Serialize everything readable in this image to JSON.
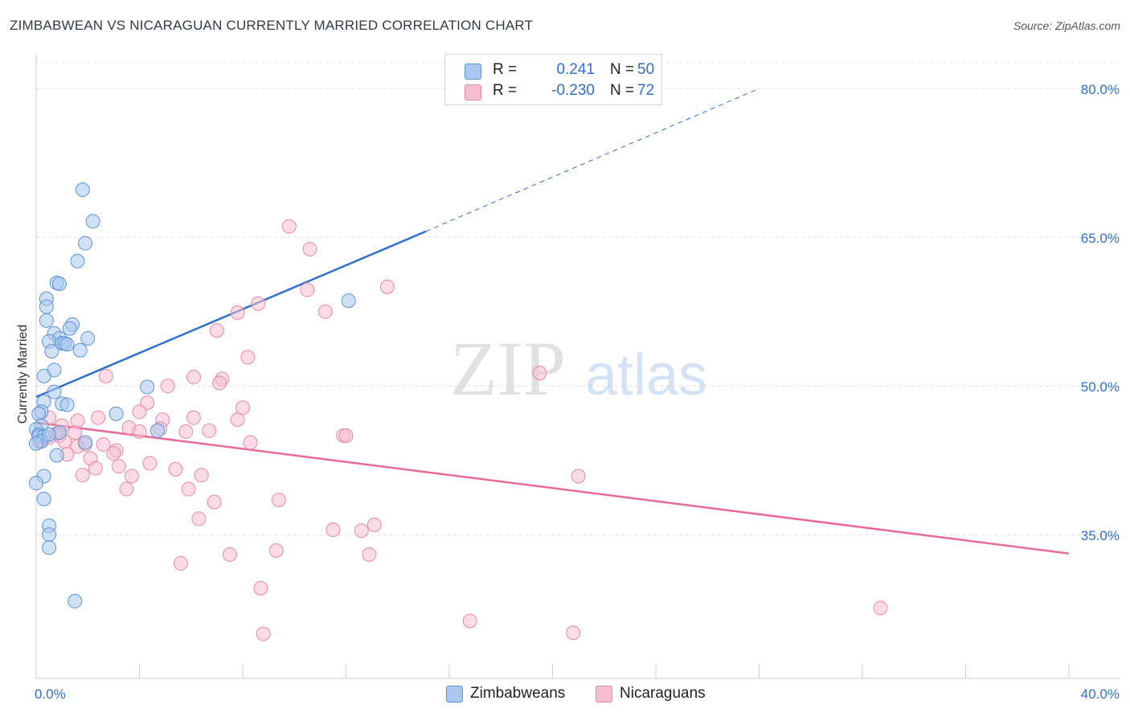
{
  "header": {
    "title": "ZIMBABWEAN VS NICARAGUAN CURRENTLY MARRIED CORRELATION CHART",
    "source": "Source: ZipAtlas.com"
  },
  "legend": {
    "rows": [
      {
        "r_label": "R =",
        "r_value": "0.241",
        "n_label": "N =",
        "n_value": "50"
      },
      {
        "r_label": "R =",
        "r_value": "-0.230",
        "n_label": "N =",
        "n_value": "72"
      }
    ]
  },
  "watermark": {
    "zip": "ZIP",
    "atlas": "atlas"
  },
  "chart_data": {
    "type": "scatter",
    "title": "ZIMBABWEAN VS NICARAGUAN CURRENTLY MARRIED CORRELATION CHART",
    "xlabel": "",
    "ylabel": "Currently Married",
    "xlim": [
      0,
      40
    ],
    "ylim": [
      20.5,
      83.5
    ],
    "x_tick_labels": [
      "0.0%",
      "40.0%"
    ],
    "y_ticks": [
      35,
      50,
      65,
      80
    ],
    "y_tick_labels": [
      "35.0%",
      "50.0%",
      "65.0%",
      "80.0%"
    ],
    "grid": true,
    "legend_position": "bottom-center",
    "colors": {
      "zimbabweans_fill": "#aac8ef",
      "zimbabweans_stroke": "#5b93d6",
      "zimbabweans_line": "#2f6fcf",
      "nicaraguans_fill": "#f7bdd0",
      "nicaraguans_stroke": "#e889a8",
      "nicaraguans_line": "#e8699a",
      "axis_value": "#2f6fcf"
    },
    "series": [
      {
        "name": "Zimbabweans",
        "r": 0.241,
        "n": 50,
        "trend": {
          "x0": 0,
          "y0": 48.9,
          "x1": 15.1,
          "y1": 65.6,
          "dash_to_x": 28,
          "dash_to_y": 80.0
        },
        "points": [
          [
            1.8,
            69.8
          ],
          [
            2.2,
            66.6
          ],
          [
            1.9,
            64.4
          ],
          [
            1.6,
            62.6
          ],
          [
            0.8,
            60.4
          ],
          [
            0.9,
            60.3
          ],
          [
            0.4,
            58.8
          ],
          [
            0.4,
            58.0
          ],
          [
            0.4,
            56.6
          ],
          [
            1.4,
            56.2
          ],
          [
            1.3,
            55.8
          ],
          [
            0.7,
            55.3
          ],
          [
            2.0,
            54.8
          ],
          [
            0.9,
            54.8
          ],
          [
            0.5,
            54.5
          ],
          [
            1.0,
            54.3
          ],
          [
            1.1,
            54.3
          ],
          [
            1.2,
            54.2
          ],
          [
            0.6,
            53.5
          ],
          [
            1.7,
            53.6
          ],
          [
            0.7,
            51.6
          ],
          [
            0.3,
            51.0
          ],
          [
            0.7,
            49.4
          ],
          [
            4.3,
            49.9
          ],
          [
            0.3,
            48.4
          ],
          [
            1.0,
            48.2
          ],
          [
            1.2,
            48.1
          ],
          [
            0.2,
            47.4
          ],
          [
            0.1,
            47.2
          ],
          [
            3.1,
            47.2
          ],
          [
            0.2,
            46.0
          ],
          [
            0.0,
            45.6
          ],
          [
            4.7,
            45.5
          ],
          [
            0.1,
            45.1
          ],
          [
            0.1,
            44.9
          ],
          [
            0.3,
            44.9
          ],
          [
            0.2,
            44.4
          ],
          [
            0.0,
            44.2
          ],
          [
            1.9,
            44.3
          ],
          [
            0.8,
            43.0
          ],
          [
            0.3,
            40.9
          ],
          [
            0.0,
            40.2
          ],
          [
            0.3,
            38.6
          ],
          [
            0.5,
            35.9
          ],
          [
            0.5,
            35.0
          ],
          [
            0.5,
            33.7
          ],
          [
            1.5,
            28.3
          ],
          [
            12.1,
            58.6
          ],
          [
            0.9,
            45.3
          ],
          [
            0.5,
            45.1
          ]
        ]
      },
      {
        "name": "Nicaraguans",
        "r": -0.23,
        "n": 72,
        "trend": {
          "x0": 0,
          "y0": 46.3,
          "x1": 40,
          "y1": 33.1
        },
        "points": [
          [
            9.8,
            66.1
          ],
          [
            10.6,
            63.8
          ],
          [
            13.6,
            60.0
          ],
          [
            10.5,
            59.7
          ],
          [
            8.6,
            58.3
          ],
          [
            7.8,
            57.4
          ],
          [
            11.2,
            57.5
          ],
          [
            7.0,
            55.6
          ],
          [
            8.2,
            52.9
          ],
          [
            19.5,
            51.3
          ],
          [
            2.7,
            51.0
          ],
          [
            6.1,
            50.9
          ],
          [
            7.2,
            50.7
          ],
          [
            7.1,
            50.3
          ],
          [
            5.1,
            50.0
          ],
          [
            4.3,
            48.3
          ],
          [
            8.0,
            47.8
          ],
          [
            4.0,
            47.4
          ],
          [
            0.5,
            46.8
          ],
          [
            2.4,
            46.8
          ],
          [
            6.1,
            46.8
          ],
          [
            1.6,
            46.5
          ],
          [
            4.9,
            46.6
          ],
          [
            7.8,
            46.6
          ],
          [
            1.0,
            46.0
          ],
          [
            3.6,
            45.8
          ],
          [
            4.8,
            45.7
          ],
          [
            4.0,
            45.4
          ],
          [
            5.8,
            45.4
          ],
          [
            6.7,
            45.5
          ],
          [
            1.5,
            45.3
          ],
          [
            0.8,
            45.2
          ],
          [
            0.9,
            45.0
          ],
          [
            0.5,
            44.8
          ],
          [
            11.9,
            45.0
          ],
          [
            12.0,
            45.0
          ],
          [
            0.2,
            44.5
          ],
          [
            1.1,
            44.4
          ],
          [
            8.3,
            44.3
          ],
          [
            1.9,
            44.1
          ],
          [
            2.6,
            44.1
          ],
          [
            3.1,
            43.5
          ],
          [
            1.6,
            43.9
          ],
          [
            3.0,
            43.2
          ],
          [
            1.2,
            43.1
          ],
          [
            2.1,
            42.7
          ],
          [
            4.4,
            42.2
          ],
          [
            3.2,
            41.9
          ],
          [
            2.3,
            41.7
          ],
          [
            5.4,
            41.6
          ],
          [
            1.8,
            41.0
          ],
          [
            3.7,
            40.9
          ],
          [
            6.4,
            41.0
          ],
          [
            21.0,
            40.9
          ],
          [
            3.5,
            39.6
          ],
          [
            5.9,
            39.6
          ],
          [
            9.4,
            38.5
          ],
          [
            6.9,
            38.3
          ],
          [
            6.3,
            36.6
          ],
          [
            13.1,
            36.0
          ],
          [
            11.5,
            35.5
          ],
          [
            12.6,
            35.4
          ],
          [
            9.3,
            33.4
          ],
          [
            7.5,
            33.0
          ],
          [
            12.9,
            33.0
          ],
          [
            5.6,
            32.1
          ],
          [
            8.7,
            29.6
          ],
          [
            32.7,
            27.6
          ],
          [
            16.8,
            26.3
          ],
          [
            8.8,
            25.0
          ],
          [
            20.8,
            25.1
          ],
          [
            0.1,
            44.4
          ]
        ]
      }
    ]
  }
}
